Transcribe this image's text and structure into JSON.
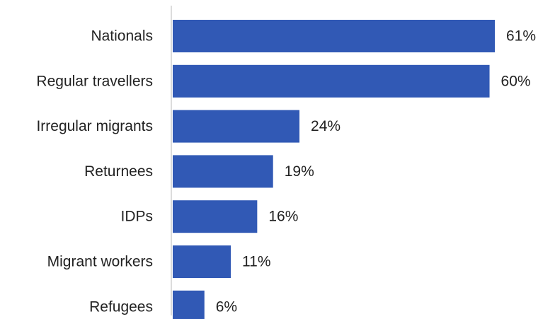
{
  "chart_data": {
    "type": "bar",
    "orientation": "horizontal",
    "categories": [
      "Nationals",
      "Regular travellers",
      "Irregular migrants",
      "Returnees",
      "IDPs",
      "Migrant workers",
      "Refugees"
    ],
    "values": [
      61,
      60,
      24,
      19,
      16,
      11,
      6
    ],
    "value_labels": [
      "61%",
      "60%",
      "24%",
      "19%",
      "16%",
      "11%",
      "6%"
    ],
    "unit": "%",
    "title": "",
    "xlabel": "",
    "ylabel": "",
    "xlim": [
      0,
      61
    ],
    "grid": false,
    "legend": "none",
    "bar_color": "#3159B5",
    "axis_color": "#D0D0D0"
  }
}
